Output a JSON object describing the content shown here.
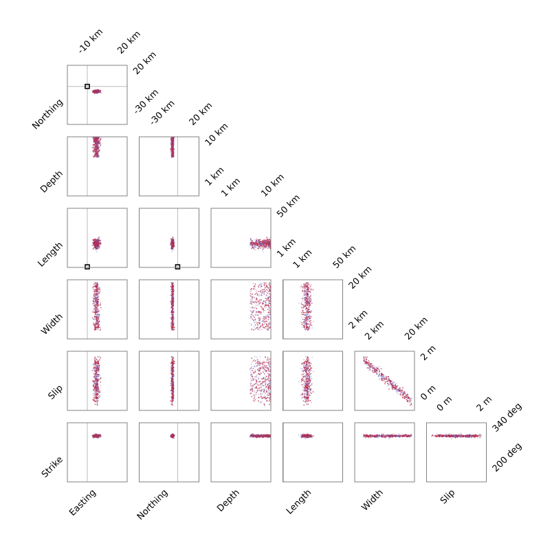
{
  "chart_data": {
    "type": "scatter",
    "title": "",
    "description": "lower-triangular corner plot of posterior samples; points coloured blue (low) to red (high)",
    "grid": false,
    "colors": {
      "low": "#4c6ee6",
      "high": "#d7191c",
      "marker": "#000000",
      "frame": "#808080",
      "refline": "#bbbbbb"
    },
    "parameters": [
      {
        "key": "easting",
        "label": "Easting",
        "ticks": [
          "-10 km",
          "20 km"
        ],
        "range": [
          -20,
          25
        ]
      },
      {
        "key": "northing",
        "label": "Northing",
        "ticks": [
          "-30 km",
          "20 km"
        ],
        "range": [
          -40,
          30
        ]
      },
      {
        "key": "depth",
        "label": "Depth",
        "ticks": [
          "1 km",
          "10 km"
        ],
        "range": [
          0,
          10
        ]
      },
      {
        "key": "length",
        "label": "Length",
        "ticks": [
          "1 km",
          "50 km"
        ],
        "range": [
          0,
          50
        ]
      },
      {
        "key": "width",
        "label": "Width",
        "ticks": [
          "2 km",
          "20 km"
        ],
        "range": [
          0,
          20
        ]
      },
      {
        "key": "slip",
        "label": "Slip",
        "ticks": [
          "0 m",
          "2 m"
        ],
        "range": [
          0,
          2
        ]
      },
      {
        "key": "strike",
        "label": "Strike",
        "ticks": [
          "200 deg",
          "340 deg"
        ],
        "range": [
          180,
          360
        ]
      }
    ],
    "reference": {
      "easting": -5,
      "northing": 5,
      "length": 0.5
    },
    "samples": {
      "count": 400,
      "easting": {
        "center": 2,
        "spread": 1.2
      },
      "northing": {
        "center": -1,
        "spread": 0.8
      },
      "depth": {
        "min": 6.5,
        "max": 10
      },
      "length": {
        "center": 20,
        "spread": 2
      },
      "width": {
        "min": 3,
        "max": 19
      },
      "slip": {
        "min": 0.3,
        "max": 1.7
      },
      "strike": {
        "center": 320,
        "spread": 2
      }
    }
  }
}
